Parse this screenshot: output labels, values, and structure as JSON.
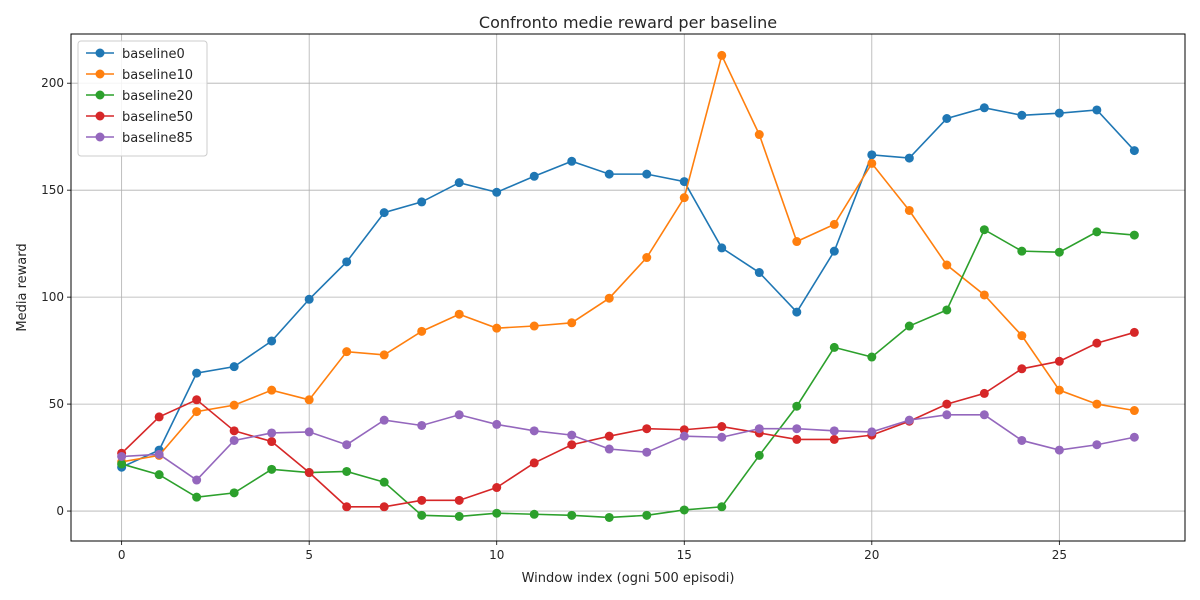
{
  "chart_data": {
    "type": "line",
    "title": "Confronto medie reward per baseline",
    "xlabel": "Window index (ogni 500 episodi)",
    "ylabel": "Media reward",
    "xlim": [
      -1.35,
      28.35
    ],
    "ylim": [
      -14,
      223
    ],
    "xticks": [
      0,
      5,
      10,
      15,
      20,
      25
    ],
    "yticks": [
      0,
      50,
      100,
      150,
      200
    ],
    "grid": true,
    "legend_position": "top-left",
    "x": [
      0,
      1,
      2,
      3,
      4,
      5,
      6,
      7,
      8,
      9,
      10,
      11,
      12,
      13,
      14,
      15,
      16,
      17,
      18,
      19,
      20,
      21,
      22,
      23,
      24,
      25,
      26,
      27
    ],
    "series": [
      {
        "name": "baseline0",
        "color": "#1f77b4",
        "values": [
          20.5,
          28.5,
          64.5,
          67.5,
          79.5,
          99,
          116.5,
          139.5,
          144.5,
          153.5,
          149,
          156.5,
          163.5,
          157.5,
          157.5,
          154,
          123,
          111.5,
          93,
          121.5,
          166.5,
          165,
          183.5,
          188.5,
          185,
          186,
          187.5,
          168.5
        ]
      },
      {
        "name": "baseline10",
        "color": "#ff7f0e",
        "values": [
          23,
          26,
          46.5,
          49.5,
          56.5,
          52,
          74.5,
          73,
          84,
          92,
          85.5,
          86.5,
          88,
          99.5,
          118.5,
          146.5,
          213,
          176,
          126,
          134,
          162.5,
          140.5,
          115,
          101,
          82,
          56.5,
          50,
          47
        ]
      },
      {
        "name": "baseline20",
        "color": "#2ca02c",
        "values": [
          22,
          17,
          6.5,
          8.5,
          19.5,
          18,
          18.5,
          13.5,
          -2,
          -2.5,
          -1,
          -1.5,
          -2,
          -3,
          -2,
          0.5,
          2,
          26,
          49,
          76.5,
          72,
          86.5,
          94,
          131.5,
          121.5,
          121,
          130.5,
          129
        ]
      },
      {
        "name": "baseline50",
        "color": "#d62728",
        "values": [
          27,
          44,
          52,
          37.5,
          32.5,
          18,
          2,
          2,
          5,
          5,
          11,
          22.5,
          31,
          35,
          38.5,
          38,
          39.5,
          36.5,
          33.5,
          33.5,
          35.5,
          42,
          50,
          55,
          66.5,
          70,
          78.5,
          83.5
        ]
      },
      {
        "name": "baseline85",
        "color": "#9467bd",
        "values": [
          25.5,
          26.5,
          14.5,
          33,
          36.5,
          37,
          31,
          42.5,
          40,
          45,
          40.5,
          37.5,
          35.5,
          29,
          27.5,
          35,
          34.5,
          38.5,
          38.5,
          37.5,
          37,
          42.5,
          45,
          45,
          33,
          28.5,
          31,
          34.5
        ]
      }
    ]
  }
}
